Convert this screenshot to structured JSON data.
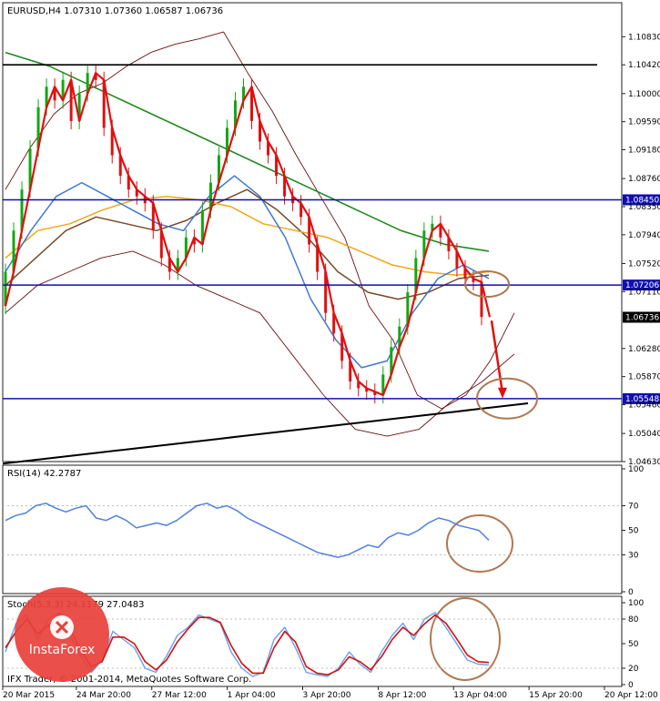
{
  "header": {
    "symbol_text": "EURUSD,H4  1.07310 1.07360 1.06587 1.06736",
    "rsi_text": "RSI(14) 42.2787",
    "stoch_text": "Stoch(5,3,3) 24.1179 27.0483",
    "copyright_text": "IFX Trader, © 2001-2014, MetaQuotes Software Corp.",
    "brand_text": "InstaForex"
  },
  "colors": {
    "price_line": "#e01010",
    "candle_up": "#11a811",
    "candle_down": "#e01010",
    "ma_green": "#208a20",
    "ma_brown": "#7a4a25",
    "ma_orange": "#f0a818",
    "ma_blue": "#4078d0",
    "bollinger": "#6a0f0f",
    "level_line": "#1010b0",
    "trend_line": "#000000",
    "annotation": "#b07850",
    "rsi_line": "#5080e0",
    "stoch_main": "#6aa0f0",
    "stoch_signal": "#d01010",
    "brand_red": "#e8403a"
  },
  "chart_data": [
    {
      "type": "line",
      "title": "EURUSD,H4",
      "ylim": [
        1.0463,
        1.111
      ],
      "price_ticks": [
        "1.10830",
        "1.10420",
        "1.10000",
        "1.09590",
        "1.09180",
        "1.08760",
        "1.08350",
        "1.07940",
        "1.07520",
        "1.07110",
        "1.06280",
        "1.05870",
        "1.05460",
        "1.05040",
        "1.04630"
      ],
      "highlighted_levels": [
        {
          "value": 1.0845,
          "label": "1.08450"
        },
        {
          "value": 1.07206,
          "label": "1.07206"
        },
        {
          "value": 1.05548,
          "label": "1.05548"
        }
      ],
      "current_price": {
        "value": 1.06736,
        "label": "1.06736"
      },
      "resistance_line": 1.1042,
      "x_labels": [
        "20 Mar 2015",
        "24 Mar 20:00",
        "27 Mar 12:00",
        "1 Apr 04:00",
        "3 Apr 20:00",
        "8 Apr 12:00",
        "13 Apr 04:00",
        "15 Apr 20:00",
        "20 Apr 12:00"
      ],
      "series": [
        {
          "values": [
            1.069,
            1.074,
            1.08,
            1.086,
            1.092,
            1.098,
            1.101,
            1.099,
            1.102,
            1.096,
            1.1,
            1.103,
            1.102,
            1.095,
            1.091,
            1.088,
            1.086,
            1.085,
            1.084,
            1.08,
            1.076,
            1.074,
            1.076,
            1.079,
            1.078,
            1.083,
            1.087,
            1.091,
            1.095,
            1.099,
            1.101,
            1.096,
            1.093,
            1.091,
            1.088,
            1.085,
            1.084,
            1.082,
            1.078,
            1.074,
            1.068,
            1.065,
            1.061,
            1.058,
            1.057,
            1.0565,
            1.056,
            1.059,
            1.063,
            1.066,
            1.071,
            1.076,
            1.08,
            1.081,
            1.079,
            1.077,
            1.0745,
            1.073,
            1.0725,
            1.0674
          ]
        },
        {
          "values": [
            1.046,
            1.0464,
            1.0468,
            1.0472,
            1.0476,
            1.048,
            1.0484,
            1.0488,
            1.0492,
            1.0496,
            1.05,
            1.0504,
            1.0508,
            1.0512,
            1.0516,
            1.052,
            1.0524,
            1.0528,
            1.0532,
            1.0536,
            1.054,
            1.0544,
            1.0548
          ]
        },
        {
          "values": [
            1.086,
            1.092,
            1.097,
            1.1,
            1.1015,
            1.104,
            1.106,
            1.1072,
            1.108,
            1.109,
            1.103,
            1.0975,
            1.091,
            1.085,
            1.079,
            1.069,
            1.064,
            1.056,
            1.054,
            1.056,
            1.061,
            1.068
          ]
        },
        {
          "values": [
            1.068,
            1.072,
            1.074,
            1.076,
            1.077,
            1.075,
            1.072,
            1.07,
            1.068,
            1.062,
            1.056,
            1.051,
            1.05,
            1.051,
            1.055,
            1.058,
            1.062
          ]
        },
        {
          "values": [
            1.074,
            1.08,
            1.085,
            1.087,
            1.085,
            1.083,
            1.081,
            1.08,
            1.085,
            1.088,
            1.085,
            1.079,
            1.07,
            1.064,
            1.06,
            1.061,
            1.068,
            1.073,
            1.075,
            1.073
          ]
        },
        {
          "values": [
            1.076,
            1.08,
            1.081,
            1.083,
            1.0845,
            1.085,
            1.0845,
            1.0835,
            1.081,
            1.08,
            1.079,
            1.077,
            1.075,
            1.074,
            1.0735,
            1.074
          ]
        },
        {
          "values": [
            1.072,
            1.076,
            1.08,
            1.082,
            1.081,
            1.08,
            1.0815,
            1.084,
            1.086,
            1.083,
            1.079,
            1.074,
            1.071,
            1.07,
            1.071,
            1.073,
            1.0735
          ]
        },
        {
          "values": [
            1.106,
            1.104,
            1.101,
            1.098,
            1.095,
            1.092,
            1.089,
            1.086,
            1.083,
            1.08,
            1.078,
            1.077
          ]
        }
      ]
    },
    {
      "type": "line",
      "title": "RSI(14) 42.2787",
      "ylim": [
        0,
        100
      ],
      "y_ticks": [
        "100",
        "70",
        "50",
        "30",
        "0"
      ],
      "series": [
        {
          "values": [
            58,
            62,
            64,
            70,
            72,
            68,
            65,
            68,
            70,
            60,
            58,
            62,
            58,
            52,
            54,
            56,
            54,
            58,
            64,
            70,
            72,
            68,
            70,
            66,
            60,
            56,
            52,
            48,
            44,
            40,
            36,
            32,
            30,
            28,
            30,
            34,
            38,
            36,
            44,
            48,
            46,
            50,
            56,
            60,
            58,
            54,
            52,
            50,
            42
          ]
        }
      ]
    },
    {
      "type": "line",
      "title": "Stoch(5,3,3) 24.1179 27.0483",
      "ylim": [
        0,
        100
      ],
      "y_ticks": [
        "100",
        "80",
        "50",
        "20",
        "0"
      ],
      "series": [
        {
          "values": [
            40,
            75,
            85,
            55,
            80,
            88,
            60,
            35,
            15,
            30,
            65,
            55,
            45,
            20,
            15,
            35,
            60,
            70,
            85,
            80,
            75,
            40,
            20,
            10,
            15,
            55,
            70,
            45,
            15,
            12,
            10,
            20,
            40,
            25,
            15,
            40,
            60,
            75,
            55,
            80,
            88,
            70,
            50,
            30,
            25,
            24
          ]
        },
        {
          "values": [
            45,
            65,
            80,
            62,
            72,
            85,
            68,
            42,
            22,
            28,
            58,
            58,
            50,
            28,
            18,
            30,
            52,
            68,
            82,
            82,
            76,
            48,
            26,
            14,
            14,
            45,
            65,
            52,
            22,
            14,
            12,
            18,
            34,
            28,
            18,
            34,
            55,
            70,
            60,
            74,
            85,
            75,
            56,
            36,
            28,
            27
          ]
        }
      ]
    }
  ]
}
